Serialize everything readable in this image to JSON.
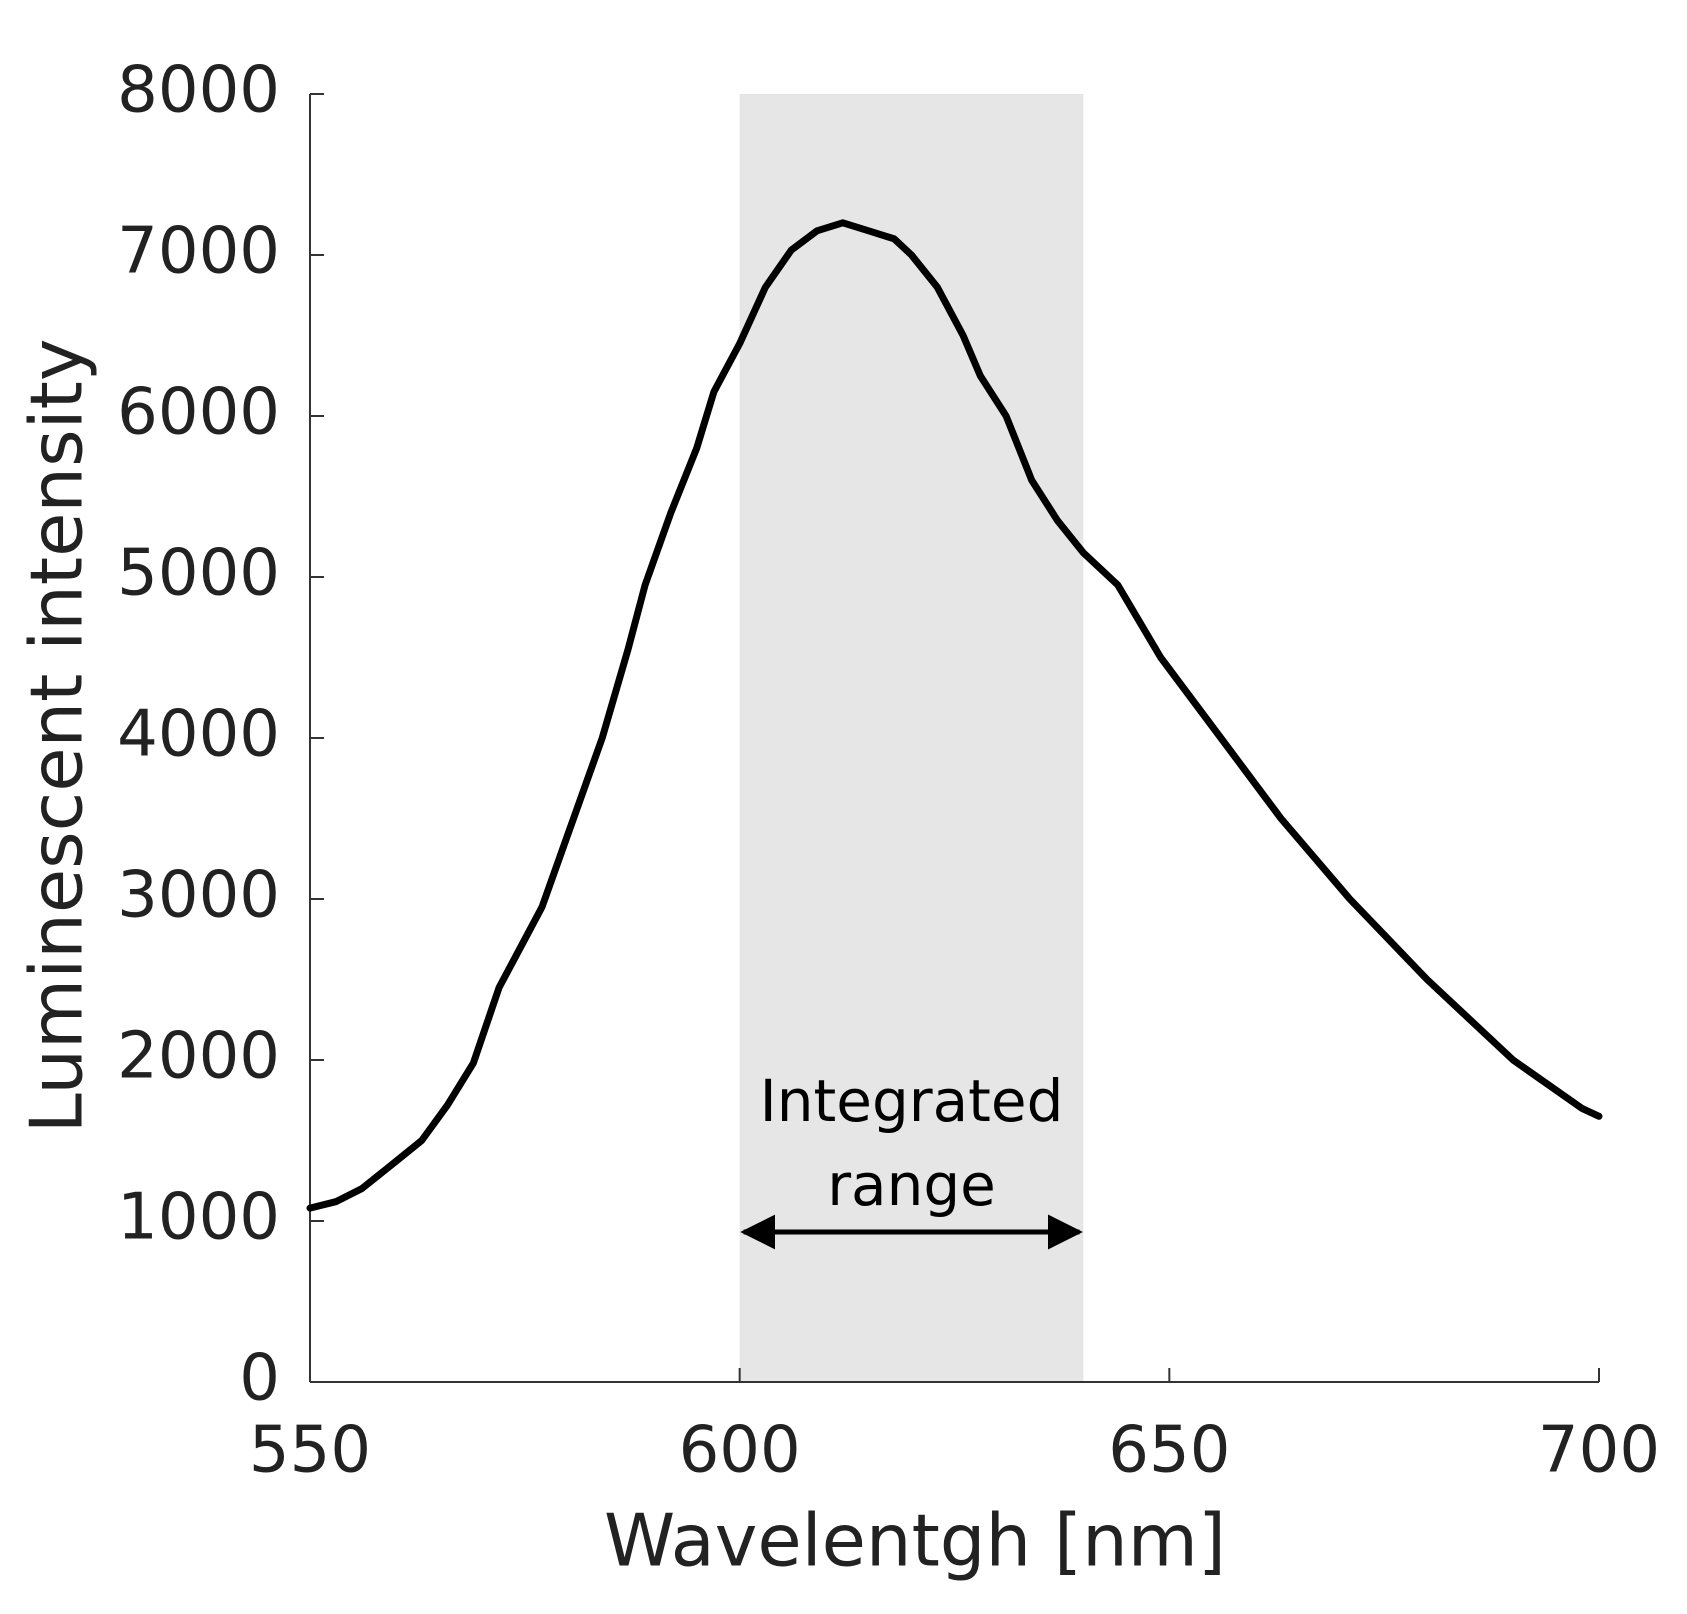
{
  "chart_data": {
    "type": "line",
    "x_label": "Wavelentgh [nm]",
    "y_label": "Luminescent intensity",
    "x": [
      550,
      553,
      556,
      560,
      563,
      566,
      569,
      572,
      575,
      577,
      580,
      582,
      584,
      587,
      589,
      592,
      595,
      597,
      600,
      603,
      606,
      609,
      612,
      615,
      618,
      620,
      623,
      626,
      628,
      631,
      634,
      637,
      640,
      644,
      649,
      656,
      663,
      671,
      680,
      690,
      698,
      700
    ],
    "series": [
      {
        "color": "#000000",
        "values": [
          1080,
          1120,
          1200,
          1370,
          1500,
          1720,
          1980,
          2450,
          2750,
          2950,
          3400,
          3700,
          4000,
          4550,
          4950,
          5400,
          5800,
          6150,
          6450,
          6800,
          7030,
          7150,
          7200,
          7150,
          7100,
          7000,
          6800,
          6500,
          6250,
          6000,
          5600,
          5350,
          5150,
          4950,
          4500,
          4000,
          3500,
          3000,
          2500,
          2000,
          1700,
          1650
        ]
      }
    ],
    "xlim": [
      550,
      700
    ],
    "ylim": [
      0,
      8000
    ],
    "xticks": [
      550,
      600,
      650,
      700
    ],
    "yticks": [
      0,
      1000,
      2000,
      3000,
      4000,
      5000,
      6000,
      7000,
      8000
    ],
    "shaded_span": {
      "range": [
        600,
        640
      ],
      "color": "#e6e6e6",
      "label": [
        "Integrated",
        "range"
      ]
    }
  }
}
